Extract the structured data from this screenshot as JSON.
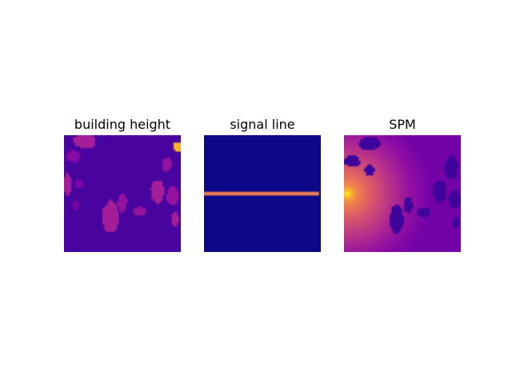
{
  "chart_data": [
    {
      "type": "heatmap",
      "title": "building height",
      "colormap": "plasma",
      "axes": "off",
      "background_level": 0.15,
      "regions": [
        {
          "kind": "building",
          "level": 0.45,
          "cx": 0.18,
          "cy": 0.05,
          "rx": 0.1,
          "ry": 0.06
        },
        {
          "kind": "building",
          "level": 0.35,
          "cx": 0.08,
          "cy": 0.18,
          "rx": 0.06,
          "ry": 0.05
        },
        {
          "kind": "building",
          "level": 0.45,
          "cx": 0.03,
          "cy": 0.42,
          "rx": 0.03,
          "ry": 0.1
        },
        {
          "kind": "building",
          "level": 0.3,
          "cx": 0.13,
          "cy": 0.42,
          "rx": 0.04,
          "ry": 0.04
        },
        {
          "kind": "building",
          "level": 0.3,
          "cx": 0.1,
          "cy": 0.6,
          "rx": 0.03,
          "ry": 0.04
        },
        {
          "kind": "building",
          "level": 0.45,
          "cx": 0.4,
          "cy": 0.7,
          "rx": 0.07,
          "ry": 0.14
        },
        {
          "kind": "building",
          "level": 0.4,
          "cx": 0.5,
          "cy": 0.58,
          "rx": 0.04,
          "ry": 0.08
        },
        {
          "kind": "building",
          "level": 0.4,
          "cx": 0.65,
          "cy": 0.65,
          "rx": 0.06,
          "ry": 0.04
        },
        {
          "kind": "building",
          "level": 0.45,
          "cx": 0.8,
          "cy": 0.48,
          "rx": 0.06,
          "ry": 0.1
        },
        {
          "kind": "building",
          "level": 0.4,
          "cx": 0.88,
          "cy": 0.25,
          "rx": 0.04,
          "ry": 0.06
        },
        {
          "kind": "building",
          "level": 0.4,
          "cx": 0.93,
          "cy": 0.52,
          "rx": 0.05,
          "ry": 0.08
        },
        {
          "kind": "building",
          "level": 0.45,
          "cx": 0.95,
          "cy": 0.72,
          "rx": 0.03,
          "ry": 0.06
        },
        {
          "kind": "building",
          "level": 0.95,
          "cx": 0.97,
          "cy": 0.1,
          "rx": 0.04,
          "ry": 0.04
        }
      ]
    },
    {
      "type": "heatmap",
      "title": "signal line",
      "colormap": "plasma",
      "axes": "off",
      "background_level": 0.0,
      "line": {
        "orientation": "horizontal",
        "position": 0.5,
        "extent": [
          0.0,
          0.98
        ],
        "level": 0.85
      }
    },
    {
      "type": "heatmap",
      "title": "SPM",
      "colormap": "plasma",
      "axes": "off",
      "source": {
        "x": 0.03,
        "y": 0.5,
        "peak_level": 1.0,
        "decay": 1.6
      },
      "building_level": 0.12,
      "regions": [
        {
          "kind": "building",
          "level": 0.12,
          "cx": 0.22,
          "cy": 0.07,
          "rx": 0.09,
          "ry": 0.06
        },
        {
          "kind": "building",
          "level": 0.12,
          "cx": 0.07,
          "cy": 0.22,
          "rx": 0.07,
          "ry": 0.05
        },
        {
          "kind": "building",
          "level": 0.12,
          "cx": 0.22,
          "cy": 0.3,
          "rx": 0.04,
          "ry": 0.05
        },
        {
          "kind": "building",
          "level": 0.12,
          "cx": 0.45,
          "cy": 0.72,
          "rx": 0.06,
          "ry": 0.12
        },
        {
          "kind": "building",
          "level": 0.12,
          "cx": 0.55,
          "cy": 0.6,
          "rx": 0.04,
          "ry": 0.07
        },
        {
          "kind": "building",
          "level": 0.12,
          "cx": 0.68,
          "cy": 0.66,
          "rx": 0.06,
          "ry": 0.04
        },
        {
          "kind": "building",
          "level": 0.12,
          "cx": 0.82,
          "cy": 0.48,
          "rx": 0.06,
          "ry": 0.09
        },
        {
          "kind": "building",
          "level": 0.12,
          "cx": 0.92,
          "cy": 0.28,
          "rx": 0.06,
          "ry": 0.1
        },
        {
          "kind": "building",
          "level": 0.12,
          "cx": 0.95,
          "cy": 0.55,
          "rx": 0.05,
          "ry": 0.08
        },
        {
          "kind": "building",
          "level": 0.12,
          "cx": 0.96,
          "cy": 0.75,
          "rx": 0.03,
          "ry": 0.05
        }
      ]
    }
  ]
}
